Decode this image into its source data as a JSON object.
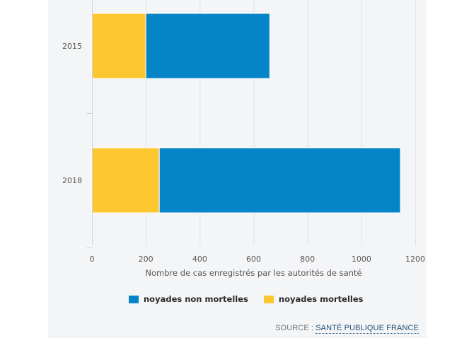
{
  "chart_data": {
    "type": "bar",
    "orientation": "horizontal",
    "stacked": true,
    "categories": [
      "2015",
      "2018"
    ],
    "series": [
      {
        "name": "noyades mortelles",
        "color": "#fcc72f",
        "values": [
          200,
          250
        ]
      },
      {
        "name": "noyades non mortelles",
        "color": "#0585c7",
        "values": [
          460,
          895
        ]
      }
    ],
    "xlabel": "Nombre de cas enregistrés par les autorités de santé",
    "xlim": [
      0,
      1200
    ],
    "xticks": [
      0,
      200,
      400,
      600,
      800,
      1000,
      1200
    ],
    "grid": true
  },
  "legend": {
    "items": [
      {
        "label": "noyades non mortelles",
        "color": "#0585c7"
      },
      {
        "label": "noyades mortelles",
        "color": "#fcc72f"
      }
    ]
  },
  "source": {
    "prefix": "SOURCE :",
    "link_text": "SANTÉ PUBLIQUE FRANCE"
  }
}
